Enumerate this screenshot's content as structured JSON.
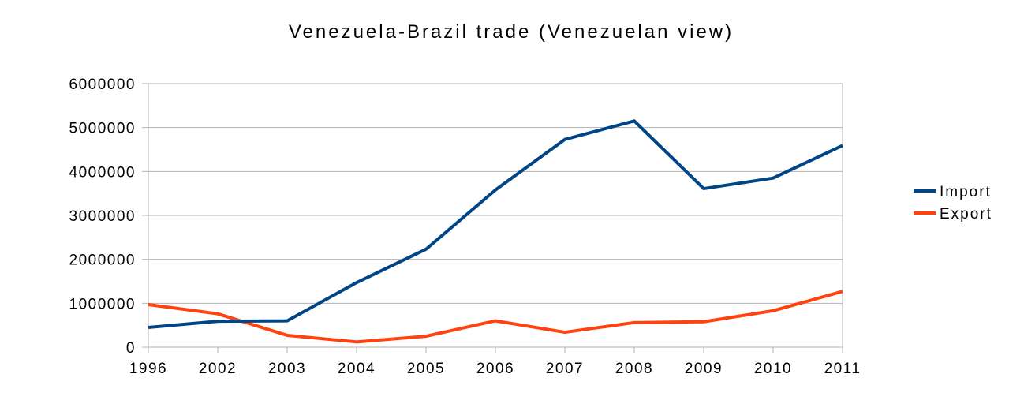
{
  "chart_data": {
    "type": "line",
    "title": "Venezuela-Brazil trade (Venezuelan view)",
    "xlabel": "",
    "ylabel": "",
    "categories": [
      "1996",
      "2002",
      "2003",
      "2004",
      "2005",
      "2006",
      "2007",
      "2008",
      "2009",
      "2010",
      "2011"
    ],
    "ylim": [
      0,
      6000000
    ],
    "yticks": [
      "0",
      "1000000",
      "2000000",
      "3000000",
      "4000000",
      "5000000",
      "6000000"
    ],
    "grid": true,
    "legend_position": "right",
    "series": [
      {
        "name": "Import",
        "color": "#004586",
        "values": [
          450000,
          590000,
          600000,
          1470000,
          2230000,
          3580000,
          4730000,
          5150000,
          3610000,
          3850000,
          4590000
        ]
      },
      {
        "name": "Export",
        "color": "#ff420e",
        "values": [
          970000,
          760000,
          270000,
          120000,
          250000,
          600000,
          340000,
          560000,
          580000,
          830000,
          1270000
        ]
      }
    ]
  }
}
